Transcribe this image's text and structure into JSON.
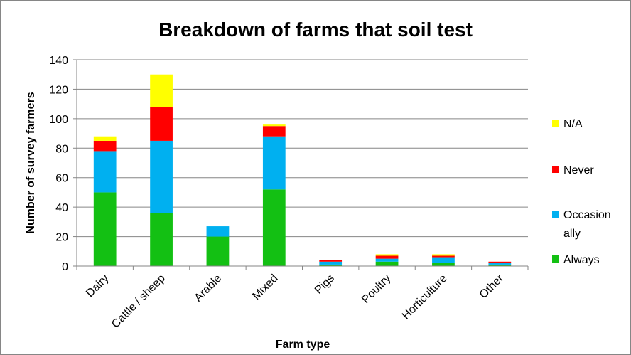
{
  "chart_data": {
    "type": "bar",
    "stacked": true,
    "title": "Breakdown of farms that soil test",
    "xlabel": "Farm type",
    "ylabel": "Number of survey farmers",
    "ylim": [
      0,
      140
    ],
    "yticks": [
      0,
      20,
      40,
      60,
      80,
      100,
      120,
      140
    ],
    "grid": true,
    "legend_position": "right",
    "categories": [
      "Dairy",
      "Cattle / sheep",
      "Arable",
      "Mixed",
      "Pigs",
      "Poultry",
      "Horticulture",
      "Other"
    ],
    "series": [
      {
        "name": "Always",
        "color": "#13c013",
        "values": [
          50,
          36,
          20,
          52,
          1,
          3,
          2,
          1
        ]
      },
      {
        "name": "Occasionally",
        "legend_lines": [
          "Occasion",
          "ally"
        ],
        "color": "#00b0f0",
        "values": [
          28,
          49,
          7,
          36,
          2,
          2,
          4,
          1
        ]
      },
      {
        "name": "Never",
        "color": "#ff0000",
        "values": [
          7,
          23,
          0,
          7,
          1,
          2,
          1,
          1
        ]
      },
      {
        "name": "N/A",
        "color": "#ffff00",
        "values": [
          3,
          22,
          0,
          1,
          0,
          1,
          1,
          0
        ]
      }
    ]
  }
}
